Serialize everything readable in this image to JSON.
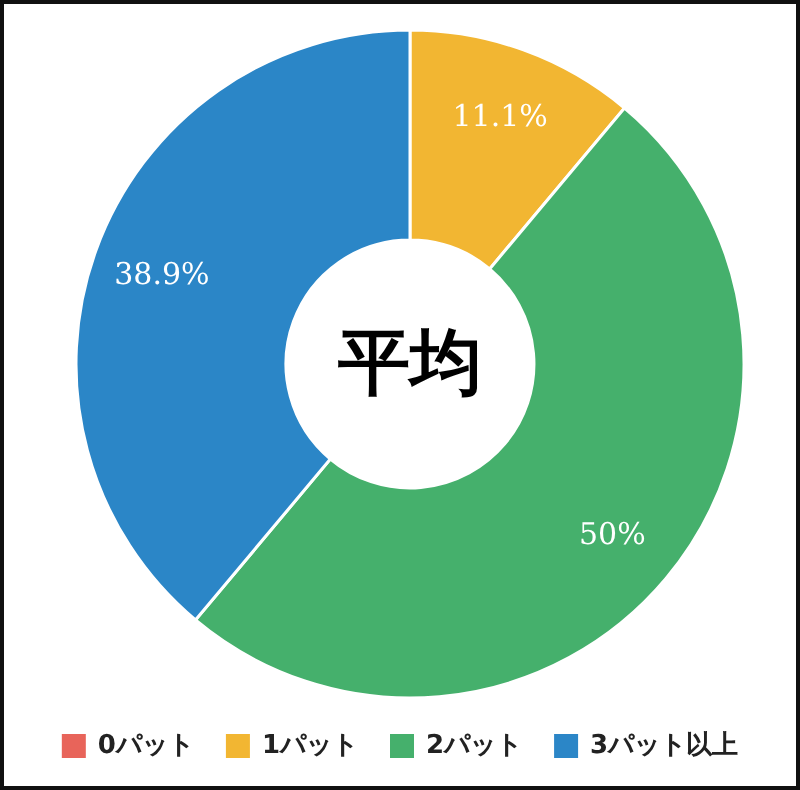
{
  "chart_data": {
    "type": "donut",
    "title": "平均",
    "categories": [
      "0パット",
      "1パット",
      "2パット",
      "3パット以上"
    ],
    "values": [
      0,
      11.1,
      50,
      38.9
    ],
    "value_labels": [
      null,
      "11.1%",
      "50%",
      "38.9%"
    ],
    "colors": [
      "#e8645a",
      "#f2b632",
      "#45b06c",
      "#2b86c7"
    ],
    "legend": "bottom"
  }
}
